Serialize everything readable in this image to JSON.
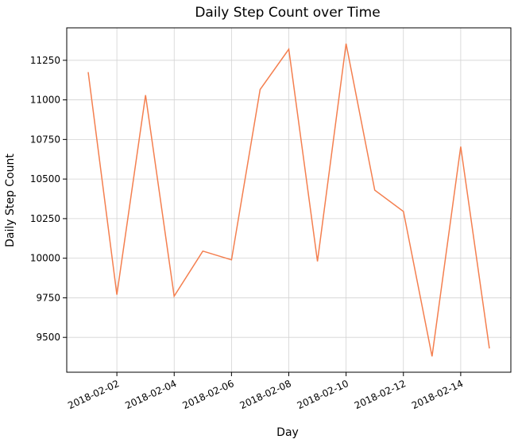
{
  "chart_data": {
    "type": "line",
    "title": "Daily Step Count over Time",
    "xlabel": "Day",
    "ylabel": "Daily Step Count",
    "line_color": "#f47f4f",
    "grid": true,
    "x": [
      "2018-02-01",
      "2018-02-02",
      "2018-02-03",
      "2018-02-04",
      "2018-02-05",
      "2018-02-06",
      "2018-02-07",
      "2018-02-08",
      "2018-02-09",
      "2018-02-10",
      "2018-02-11",
      "2018-02-12",
      "2018-02-13",
      "2018-02-14",
      "2018-02-15"
    ],
    "series": [
      {
        "values": [
          11175,
          9770,
          11030,
          9760,
          10045,
          9990,
          11065,
          11320,
          9980,
          11355,
          10430,
          10295,
          9380,
          10705,
          9430
        ]
      }
    ],
    "xticks": [
      "2018-02-02",
      "2018-02-04",
      "2018-02-06",
      "2018-02-08",
      "2018-02-10",
      "2018-02-12",
      "2018-02-14"
    ],
    "yticks": [
      9500,
      9750,
      10000,
      10250,
      10500,
      10750,
      11000,
      11250
    ],
    "xlim": [
      "2018-01-31T06:00",
      "2018-02-15T18:00"
    ],
    "ylim": [
      9280,
      11455
    ]
  }
}
